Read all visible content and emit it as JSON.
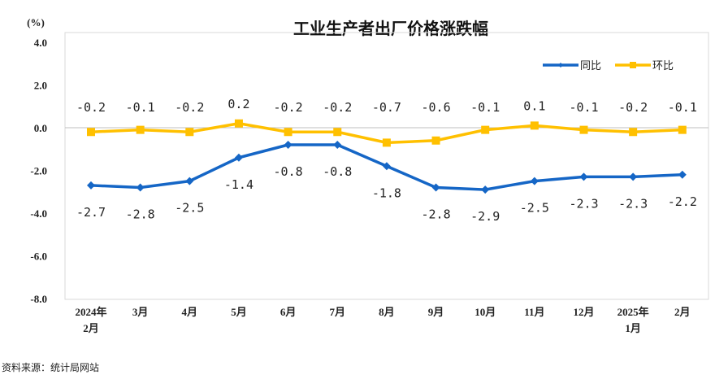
{
  "chart_data": {
    "type": "line",
    "title": "工业生产者出厂价格涨跌幅",
    "ylabel": "(%)",
    "xlabel": "",
    "ylim": [
      -8.0,
      4.0
    ],
    "yticks": [
      "4.0",
      "2.0",
      "0.0",
      "-2.0",
      "-4.0",
      "-6.0",
      "-8.0"
    ],
    "grid": false,
    "legend_position": "top-right",
    "categories": [
      [
        "2024年",
        "2月"
      ],
      [
        "3月"
      ],
      [
        "4月"
      ],
      [
        "5月"
      ],
      [
        "6月"
      ],
      [
        "7月"
      ],
      [
        "8月"
      ],
      [
        "9月"
      ],
      [
        "10月"
      ],
      [
        "11月"
      ],
      [
        "12月"
      ],
      [
        "2025年",
        "1月"
      ],
      [
        "2月"
      ]
    ],
    "series": [
      {
        "name": "同比",
        "color": "#1566C6",
        "marker": "diamond",
        "label_pos": "below",
        "values": [
          -2.7,
          -2.8,
          -2.5,
          -1.4,
          -0.8,
          -0.8,
          -1.8,
          -2.8,
          -2.9,
          -2.5,
          -2.3,
          -2.3,
          -2.2
        ]
      },
      {
        "name": "环比",
        "color": "#FFC000",
        "marker": "square",
        "label_pos": "above",
        "values": [
          -0.2,
          -0.1,
          -0.2,
          0.2,
          -0.2,
          -0.2,
          -0.7,
          -0.6,
          -0.1,
          0.1,
          -0.1,
          -0.2,
          -0.1
        ]
      }
    ]
  },
  "source": "资料来源：统计局网站"
}
